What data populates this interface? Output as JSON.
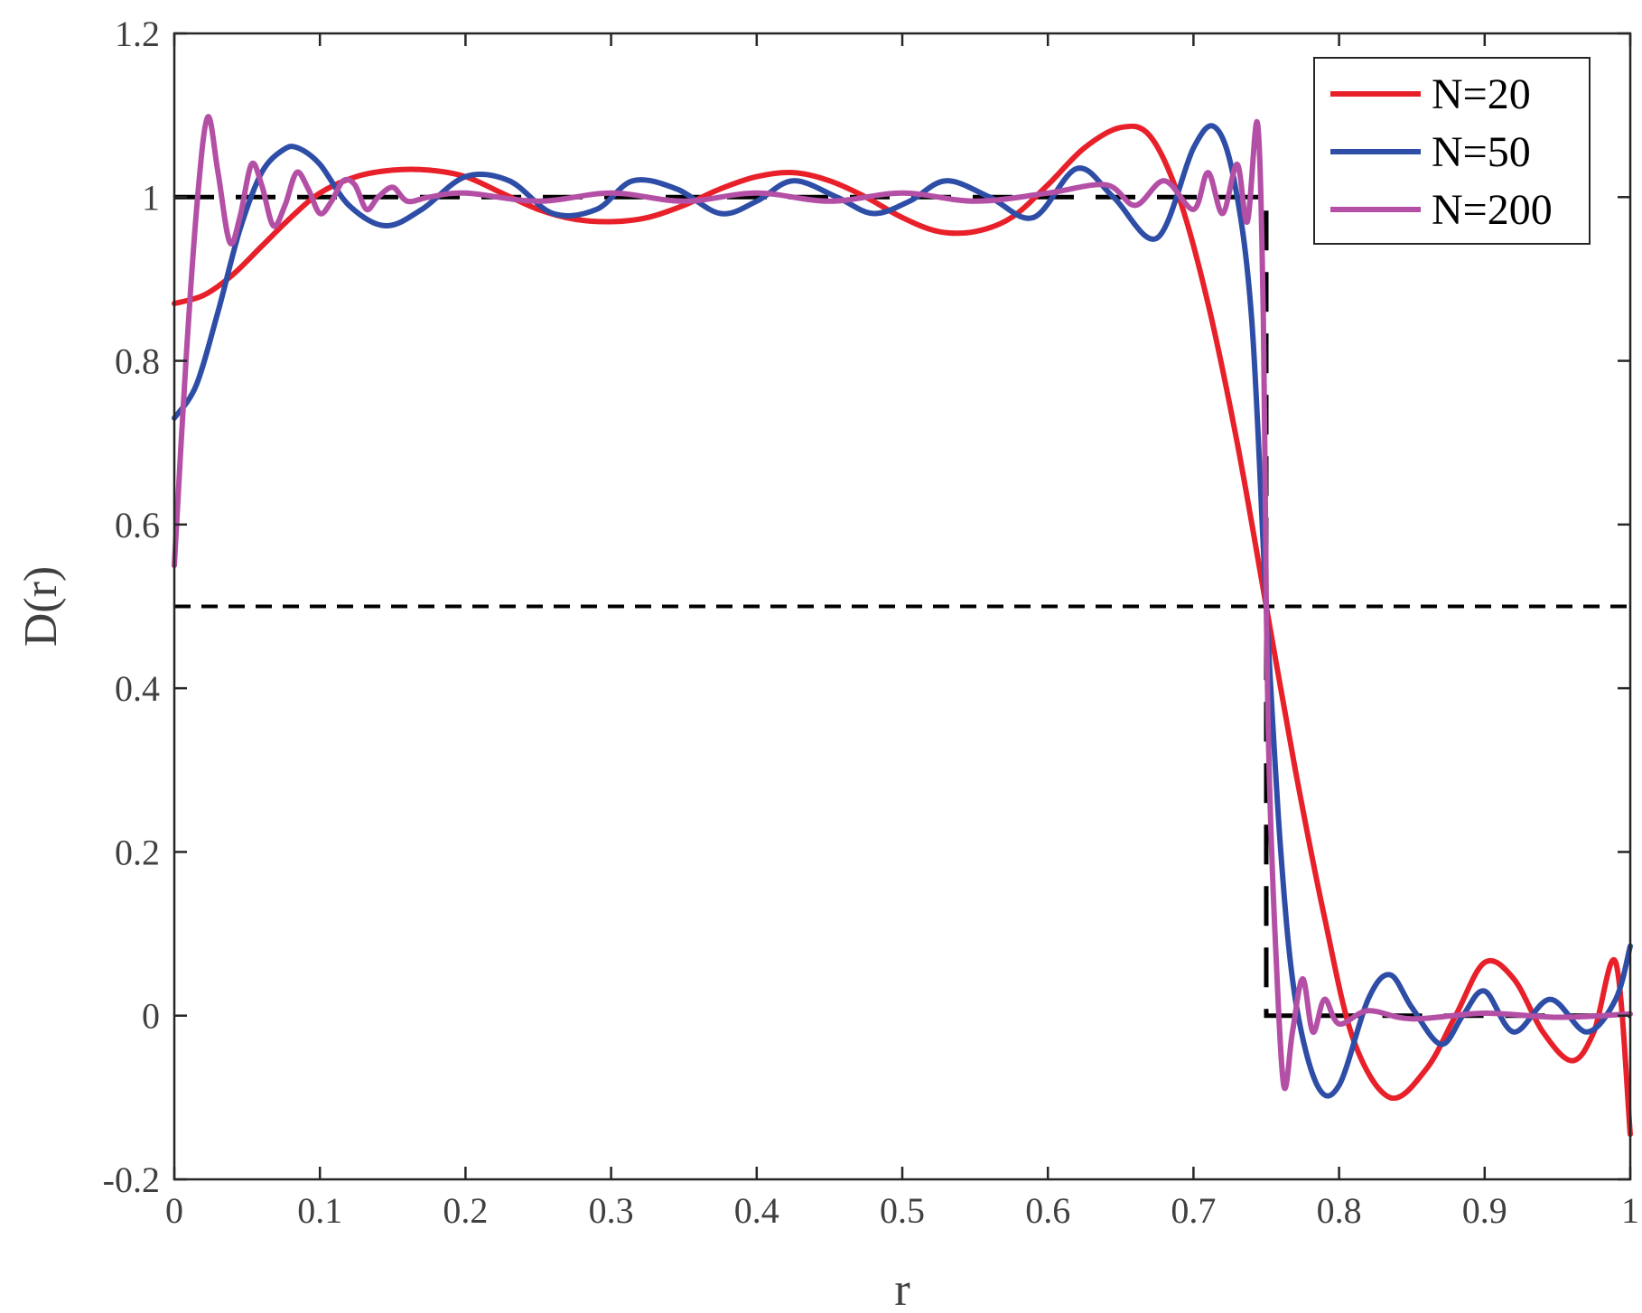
{
  "chart_data": {
    "type": "line",
    "title": "",
    "xlabel": "r",
    "ylabel": "D(r)",
    "xlim": [
      0,
      1
    ],
    "ylim": [
      -0.2,
      1.2
    ],
    "grid": false,
    "legend_position": "top-right",
    "x_ticks": [
      {
        "value": 0,
        "label": "0"
      },
      {
        "value": 0.1,
        "label": "0.1"
      },
      {
        "value": 0.2,
        "label": "0.2"
      },
      {
        "value": 0.3,
        "label": "0.3"
      },
      {
        "value": 0.4,
        "label": "0.4"
      },
      {
        "value": 0.5,
        "label": "0.5"
      },
      {
        "value": 0.6,
        "label": "0.6"
      },
      {
        "value": 0.7,
        "label": "0.7"
      },
      {
        "value": 0.8,
        "label": "0.8"
      },
      {
        "value": 0.9,
        "label": "0.9"
      },
      {
        "value": 1,
        "label": "1"
      }
    ],
    "y_ticks": [
      {
        "value": -0.2,
        "label": "-0.2"
      },
      {
        "value": 0,
        "label": "0"
      },
      {
        "value": 0.2,
        "label": "0.2"
      },
      {
        "value": 0.4,
        "label": "0.4"
      },
      {
        "value": 0.6,
        "label": "0.6"
      },
      {
        "value": 0.8,
        "label": "0.8"
      },
      {
        "value": 1,
        "label": "1"
      },
      {
        "value": 1.2,
        "label": "1.2"
      }
    ],
    "reference_lines": [
      {
        "type": "horizontal",
        "y": 0.5,
        "color": "#000000",
        "style": "dashed"
      },
      {
        "type": "step",
        "x": [
          0,
          0.75,
          0.75,
          1
        ],
        "y": [
          1,
          1,
          0,
          0
        ],
        "color": "#000000",
        "style": "dashed"
      }
    ],
    "series": [
      {
        "name": "N=20",
        "color": "#e8202a",
        "x": [
          0,
          0.02,
          0.04,
          0.06,
          0.08,
          0.1,
          0.125,
          0.15,
          0.175,
          0.2,
          0.225,
          0.25,
          0.275,
          0.3,
          0.325,
          0.35,
          0.375,
          0.4,
          0.425,
          0.45,
          0.475,
          0.5,
          0.525,
          0.55,
          0.575,
          0.6,
          0.625,
          0.65,
          0.67,
          0.69,
          0.71,
          0.73,
          0.75,
          0.77,
          0.79,
          0.81,
          0.835,
          0.86,
          0.88,
          0.9,
          0.92,
          0.94,
          0.96,
          0.975,
          0.99,
          1
        ],
        "y": [
          0.87,
          0.88,
          0.905,
          0.94,
          0.975,
          1.005,
          1.025,
          1.033,
          1.033,
          1.025,
          1.005,
          0.985,
          0.973,
          0.97,
          0.975,
          0.99,
          1.01,
          1.025,
          1.03,
          1.02,
          1.0,
          0.975,
          0.958,
          0.958,
          0.975,
          1.015,
          1.06,
          1.085,
          1.075,
          1.0,
          0.87,
          0.7,
          0.5,
          0.3,
          0.12,
          -0.03,
          -0.1,
          -0.065,
          0.0,
          0.065,
          0.045,
          -0.02,
          -0.055,
          -0.02,
          0.065,
          -0.145
        ]
      },
      {
        "name": "N=50",
        "color": "#2e4da6",
        "x": [
          0,
          0.015,
          0.03,
          0.045,
          0.06,
          0.075,
          0.085,
          0.1,
          0.12,
          0.145,
          0.17,
          0.2,
          0.23,
          0.26,
          0.29,
          0.315,
          0.345,
          0.375,
          0.4,
          0.425,
          0.455,
          0.48,
          0.505,
          0.53,
          0.56,
          0.59,
          0.62,
          0.645,
          0.675,
          0.7,
          0.715,
          0.728,
          0.74,
          0.75,
          0.76,
          0.77,
          0.785,
          0.8,
          0.82,
          0.835,
          0.85,
          0.87,
          0.885,
          0.9,
          0.92,
          0.945,
          0.97,
          0.99,
          1
        ],
        "y": [
          0.73,
          0.77,
          0.86,
          0.96,
          1.03,
          1.058,
          1.06,
          1.04,
          0.99,
          0.965,
          0.985,
          1.025,
          1.02,
          0.98,
          0.985,
          1.02,
          1.01,
          0.98,
          0.995,
          1.02,
          1.0,
          0.98,
          0.995,
          1.02,
          1.0,
          0.975,
          1.035,
          1.0,
          0.95,
          1.06,
          1.085,
          1.02,
          0.85,
          0.5,
          0.2,
          0.02,
          -0.085,
          -0.085,
          0.02,
          0.05,
          0.01,
          -0.035,
          0.0,
          0.03,
          -0.02,
          0.02,
          -0.02,
          0.02,
          0.085
        ]
      },
      {
        "name": "N=200",
        "color": "#b44fa6",
        "x": [
          0,
          0.008,
          0.016,
          0.023,
          0.03,
          0.038,
          0.045,
          0.053,
          0.06,
          0.068,
          0.076,
          0.084,
          0.092,
          0.1,
          0.108,
          0.116,
          0.124,
          0.132,
          0.14,
          0.15,
          0.16,
          0.175,
          0.2,
          0.25,
          0.3,
          0.35,
          0.4,
          0.45,
          0.5,
          0.55,
          0.6,
          0.64,
          0.66,
          0.68,
          0.7,
          0.71,
          0.72,
          0.73,
          0.737,
          0.744,
          0.748,
          0.75,
          0.752,
          0.756,
          0.762,
          0.768,
          0.775,
          0.782,
          0.79,
          0.8,
          0.82,
          0.85,
          0.9,
          0.95,
          1
        ],
        "y": [
          0.55,
          0.8,
          1.0,
          1.098,
          1.03,
          0.945,
          0.975,
          1.04,
          1.015,
          0.965,
          0.99,
          1.03,
          1.01,
          0.98,
          0.995,
          1.02,
          1.015,
          0.985,
          1.0,
          1.012,
          0.995,
          1.0,
          1.005,
          0.995,
          1.005,
          0.995,
          1.005,
          0.995,
          1.005,
          0.995,
          1.005,
          1.015,
          0.99,
          1.02,
          0.985,
          1.03,
          0.98,
          1.04,
          0.97,
          1.09,
          0.85,
          0.5,
          0.3,
          0.1,
          -0.085,
          -0.02,
          0.045,
          -0.02,
          0.02,
          -0.01,
          0.006,
          -0.004,
          0.003,
          -0.002,
          0.002
        ]
      }
    ]
  }
}
